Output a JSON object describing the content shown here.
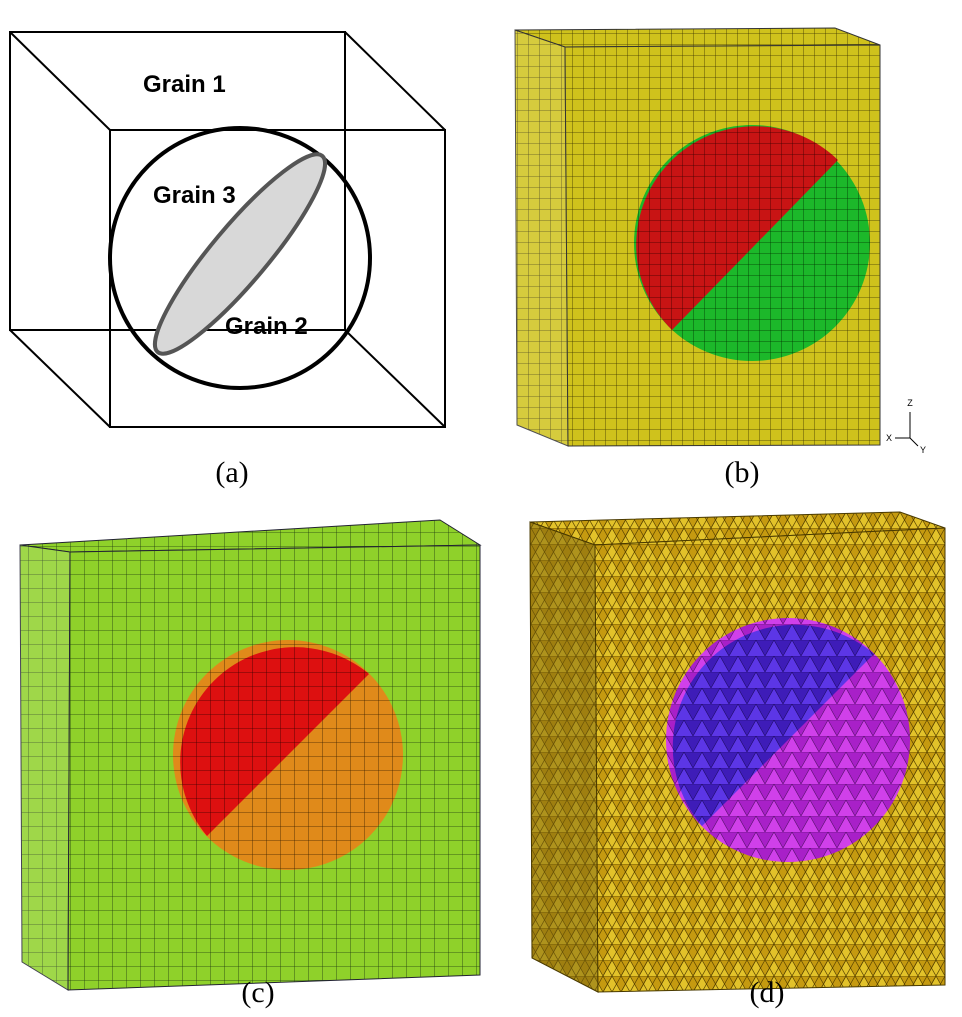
{
  "panel_a": {
    "labels": [
      "Grain 1",
      "Grain 3",
      "Grain 2"
    ],
    "caption": "(a)"
  },
  "panel_b": {
    "caption": "(b)",
    "axes": [
      "Z",
      "X",
      "Y"
    ]
  },
  "panel_c": {
    "caption": "(c)"
  },
  "panel_d": {
    "caption": "(d)"
  }
}
